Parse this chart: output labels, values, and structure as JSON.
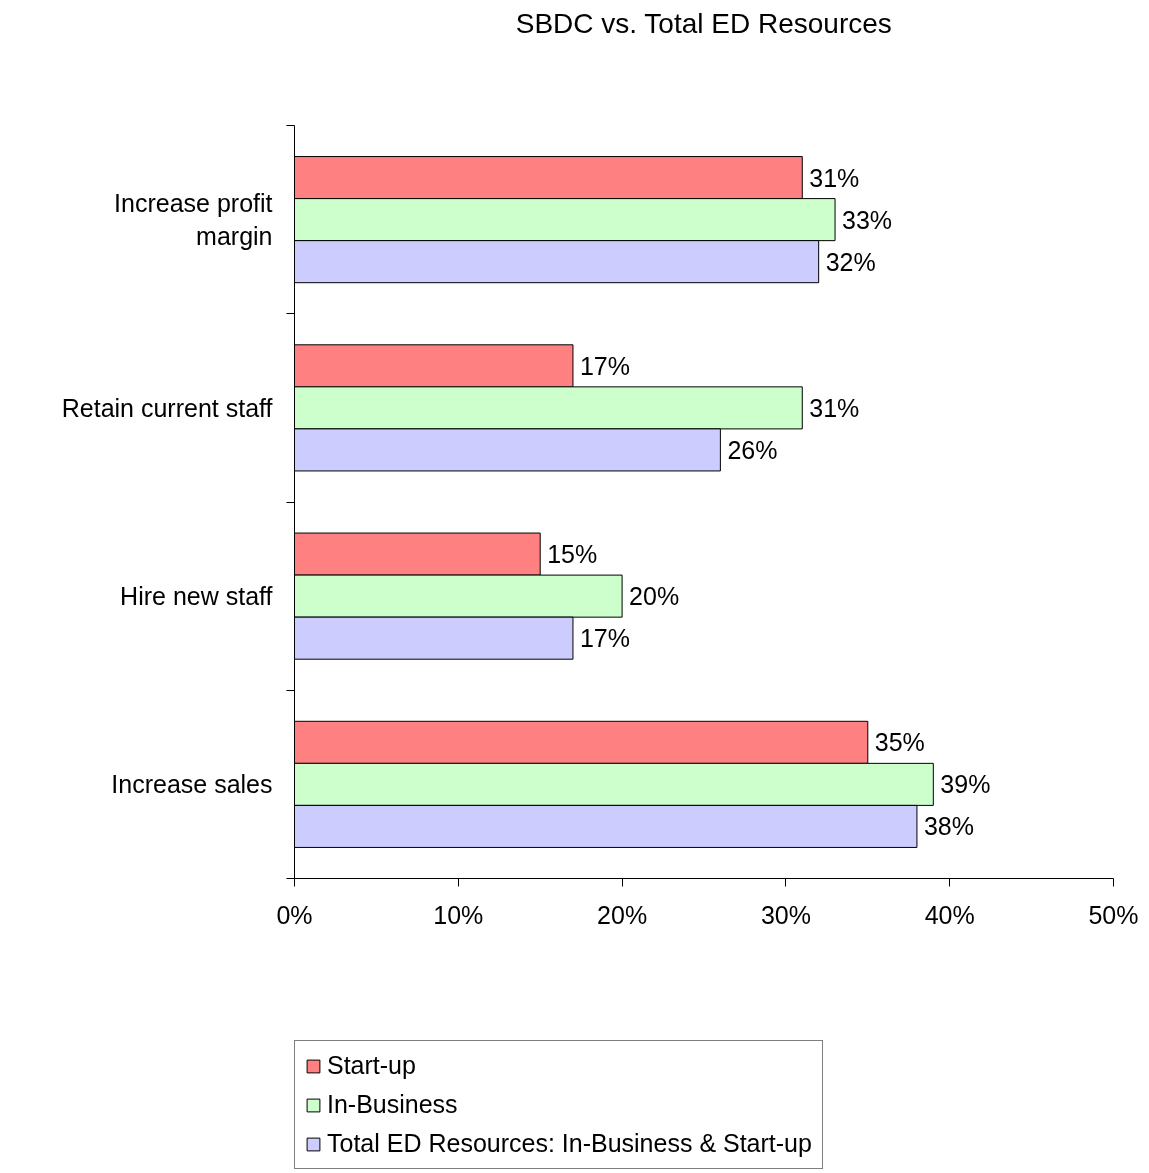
{
  "chart_data": {
    "type": "bar",
    "orientation": "horizontal",
    "title": "SBDC vs. Total ED Resources",
    "categories": [
      "Increase profit margin",
      "Retain current staff",
      "Hire new staff",
      "Increase sales"
    ],
    "series": [
      {
        "name": "Start-up",
        "color": "#ff8080",
        "values": [
          31,
          17,
          15,
          35
        ],
        "value_labels": [
          "31%",
          "17%",
          "15%",
          "35%"
        ]
      },
      {
        "name": "In-Business",
        "color": "#ccffcc",
        "values": [
          33,
          31,
          20,
          39
        ],
        "value_labels": [
          "33%",
          "31%",
          "20%",
          "39%"
        ]
      },
      {
        "name": "Total ED Resources: In-Business & Start-up",
        "color": "#ccccff",
        "values": [
          32,
          26,
          17,
          38
        ],
        "value_labels": [
          "32%",
          "26%",
          "17%",
          "38%"
        ]
      }
    ],
    "xlim": [
      0,
      50
    ],
    "xticks": [
      {
        "value": 0,
        "label": "0%"
      },
      {
        "value": 10,
        "label": "10%"
      },
      {
        "value": 20,
        "label": "20%"
      },
      {
        "value": 30,
        "label": "30%"
      },
      {
        "value": 40,
        "label": "40%"
      },
      {
        "value": 50,
        "label": "50%"
      }
    ],
    "legend": "bottom"
  }
}
